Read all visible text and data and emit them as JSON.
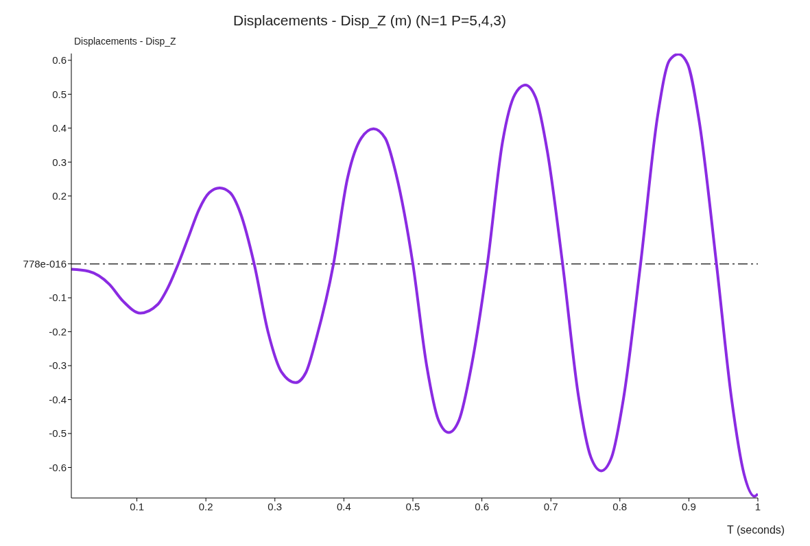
{
  "chart_data": {
    "type": "line",
    "title": "Displacements - Disp_Z (m) (N=1 P=5,4,3)",
    "ylabel": "Displacements - Disp_Z",
    "xlabel": "T (seconds)",
    "x": [
      0.005,
      0.03,
      0.06,
      0.08,
      0.105,
      0.13,
      0.145,
      0.16,
      0.175,
      0.19,
      0.205,
      0.22,
      0.235,
      0.25,
      0.27,
      0.29,
      0.31,
      0.33,
      0.345,
      0.36,
      0.385,
      0.405,
      0.425,
      0.443,
      0.46,
      0.475,
      0.5,
      0.52,
      0.537,
      0.552,
      0.567,
      0.585,
      0.608,
      0.63,
      0.648,
      0.663,
      0.678,
      0.695,
      0.717,
      0.74,
      0.758,
      0.773,
      0.788,
      0.805,
      0.83,
      0.855,
      0.872,
      0.885,
      0.898,
      0.915,
      0.94,
      0.962,
      0.98,
      0.995,
      1.0
    ],
    "series": [
      {
        "color": "#8a2be2",
        "values": [
          -0.016,
          -0.022,
          -0.06,
          -0.11,
          -0.145,
          -0.12,
          -0.07,
          0,
          0.08,
          0.16,
          0.21,
          0.224,
          0.21,
          0.15,
          0,
          -0.2,
          -0.32,
          -0.35,
          -0.32,
          -0.22,
          0,
          0.25,
          0.37,
          0.398,
          0.37,
          0.27,
          0,
          -0.3,
          -0.46,
          -0.497,
          -0.46,
          -0.3,
          0,
          0.36,
          0.5,
          0.527,
          0.49,
          0.33,
          0,
          -0.39,
          -0.57,
          -0.61,
          -0.57,
          -0.4,
          0,
          0.44,
          0.6,
          0.618,
          0.59,
          0.42,
          0,
          -0.4,
          -0.62,
          -0.685,
          -0.678
        ]
      }
    ],
    "xlim": [
      0.005,
      1.0
    ],
    "xticks": [
      0.1,
      0.2,
      0.3,
      0.4,
      0.5,
      0.6,
      0.7,
      0.8,
      0.9,
      1
    ],
    "ylim": [
      -0.69,
      0.62
    ],
    "yticks": [
      -0.6,
      -0.5,
      -0.4,
      -0.3,
      -0.2,
      -0.1,
      {
        "value": 0,
        "label": "778e-016"
      },
      0.2,
      0.3,
      0.4,
      0.5,
      0.6
    ],
    "ref_lines": [
      {
        "axis": "y",
        "value": 0,
        "color": "#333333",
        "line_style": "dashdot"
      }
    ],
    "grid": false,
    "legend": false,
    "marker": "none",
    "line_style": "solid"
  }
}
